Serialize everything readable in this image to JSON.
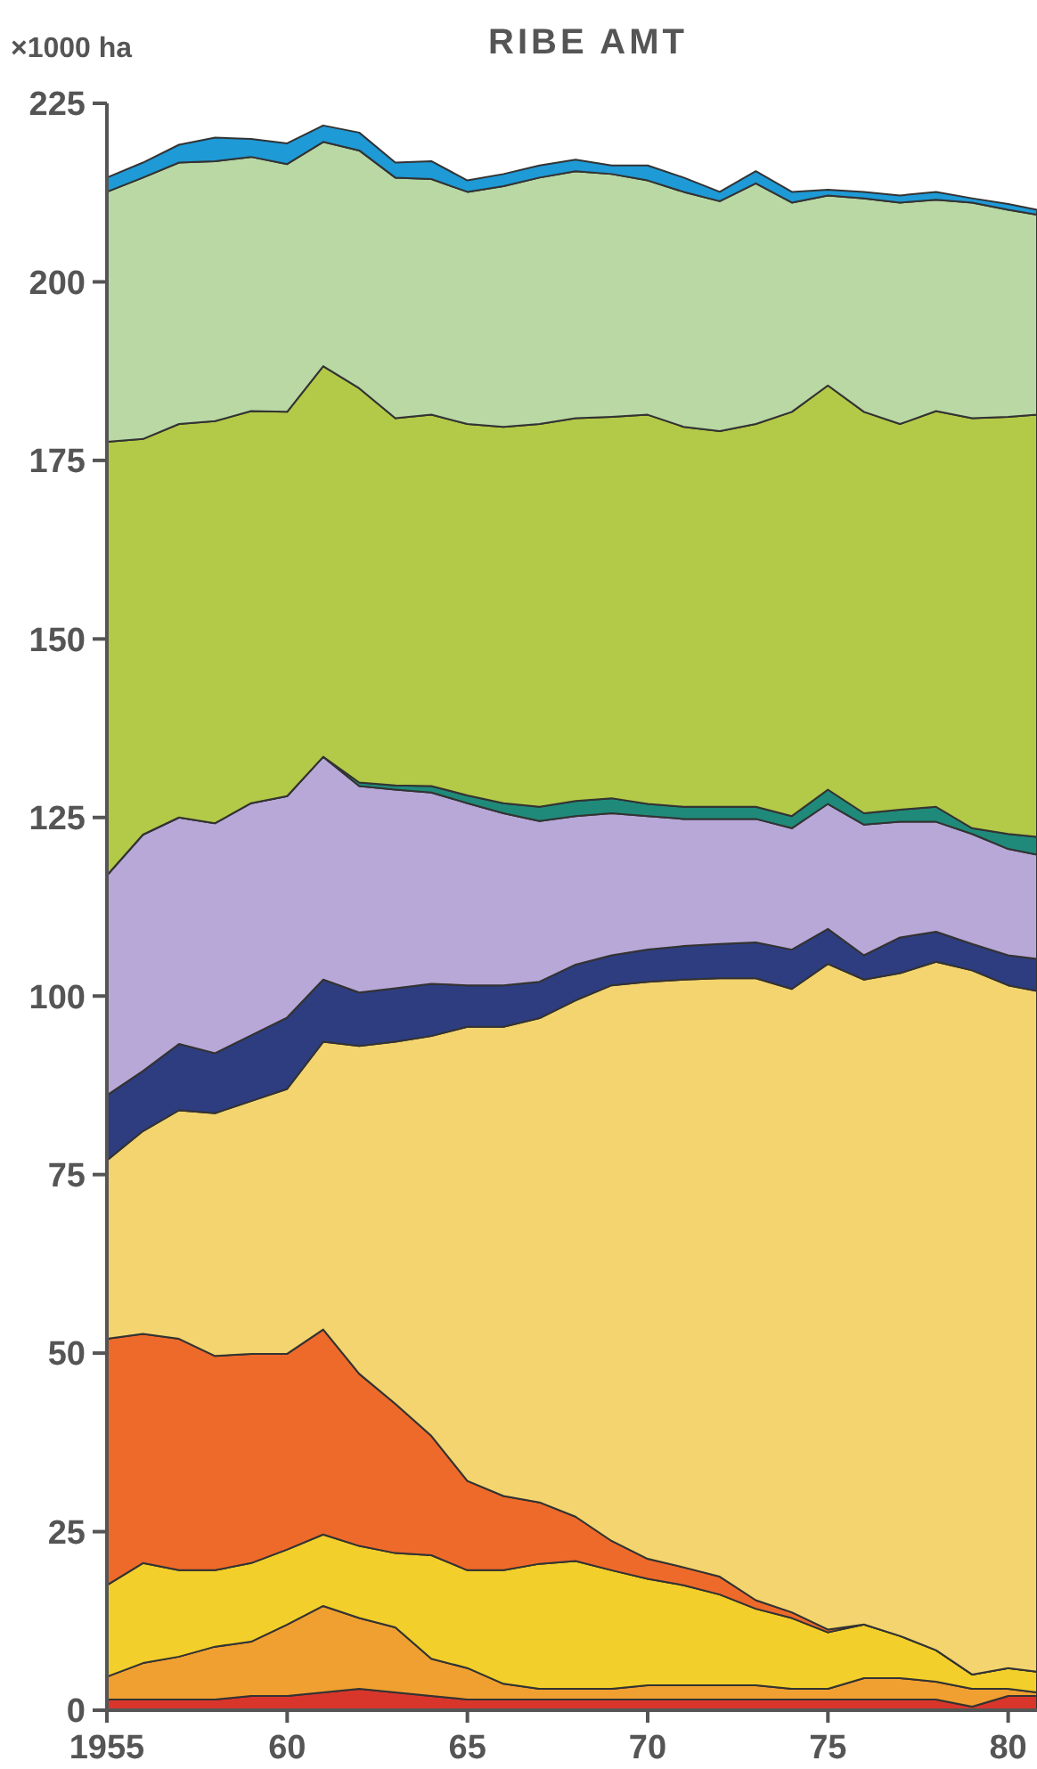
{
  "chart_data": {
    "type": "area",
    "title": "RIBE AMT",
    "ylabel": "×1000 ha",
    "stacked": true,
    "x": [
      1955,
      1956,
      1957,
      1958,
      1959,
      1960,
      1961,
      1962,
      1963,
      1964,
      1965,
      1966,
      1967,
      1968,
      1969,
      1970,
      1971,
      1972,
      1973,
      1974,
      1975,
      1976,
      1977,
      1978,
      1979,
      1980,
      1980.8
    ],
    "xlim": [
      1955,
      1980.8
    ],
    "xticks": [
      {
        "value": 1955,
        "label": "1955"
      },
      {
        "value": 1960,
        "label": "60"
      },
      {
        "value": 1965,
        "label": "65"
      },
      {
        "value": 1970,
        "label": "70"
      },
      {
        "value": 1975,
        "label": "75"
      },
      {
        "value": 1980,
        "label": "80"
      }
    ],
    "ylim": [
      0,
      225
    ],
    "yticks": [
      0,
      25,
      50,
      75,
      100,
      125,
      150,
      175,
      200,
      225
    ],
    "grid": false,
    "series": [
      {
        "color": "#d9362b",
        "values": [
          1.5,
          1.5,
          1.5,
          1.5,
          2,
          2,
          2.5,
          3,
          2.5,
          2,
          1.5,
          1.5,
          1.5,
          1.5,
          1.5,
          1.5,
          1.5,
          1.5,
          1.5,
          1.5,
          1.5,
          1.5,
          1.5,
          1.5,
          0.5,
          2,
          2
        ]
      },
      {
        "color": "#f0a030",
        "values": [
          3.2,
          5.1,
          6.0,
          7.4,
          7.6,
          10.0,
          12.1,
          9.9,
          9.1,
          5.2,
          4.4,
          2.2,
          1.5,
          1.5,
          1.5,
          2.0,
          2.0,
          2.0,
          2.0,
          1.5,
          1.5,
          3.0,
          3.0,
          2.5,
          2.5,
          1.0,
          0.5
        ]
      },
      {
        "color": "#f2cf2a",
        "values": [
          12.8,
          14.0,
          12.1,
          10.7,
          11.0,
          10.5,
          10.0,
          10.1,
          10.4,
          14.5,
          13.7,
          15.9,
          17.5,
          17.9,
          16.6,
          14.9,
          14.0,
          12.7,
          10.7,
          9.9,
          7.9,
          7.5,
          5.9,
          4.4,
          2.0,
          2.9,
          2.9
        ]
      },
      {
        "color": "#ee6a2a",
        "values": [
          34.5,
          32.1,
          32.4,
          30.0,
          29.3,
          27.4,
          28.7,
          24.1,
          20.9,
          16.7,
          12.5,
          10.4,
          8.6,
          6.2,
          4.1,
          2.8,
          2.5,
          2.5,
          1.2,
          0.8,
          0.4,
          0,
          0,
          0,
          0,
          0,
          0
        ]
      },
      {
        "color": "#f3d46e",
        "values": [
          25.0,
          28.4,
          32.0,
          34.0,
          35.4,
          37.1,
          40.3,
          45.9,
          50.7,
          56.0,
          63.6,
          65.7,
          67.8,
          72.3,
          77.8,
          80.8,
          82.3,
          83.8,
          87.1,
          87.3,
          93.2,
          90.3,
          92.8,
          96.4,
          98.6,
          95.6,
          95.3
        ]
      },
      {
        "color": "#2e3d80",
        "values": [
          9.1,
          8.4,
          9.3,
          8.4,
          9.2,
          10.0,
          8.7,
          7.5,
          7.5,
          7.3,
          5.8,
          5.8,
          5.1,
          5.0,
          4.2,
          4.5,
          4.7,
          4.8,
          5.0,
          5.5,
          4.9,
          3.4,
          5.0,
          4.2,
          3.7,
          4.2,
          4.5
        ]
      },
      {
        "color": "#b7a8d8",
        "values": [
          30.8,
          33.1,
          31.7,
          32.2,
          32.5,
          31.0,
          31.2,
          28.9,
          27.8,
          26.8,
          25.5,
          24.1,
          22.5,
          20.8,
          19.9,
          18.7,
          17.8,
          17.5,
          17.3,
          17.0,
          17.5,
          18.3,
          16.2,
          15.4,
          15.4,
          14.9,
          14.6
        ]
      },
      {
        "color": "#1f8a7a",
        "values": [
          0,
          0,
          0,
          0,
          0,
          0,
          0,
          0.5,
          0.6,
          0.9,
          1.1,
          1.4,
          2.0,
          2.1,
          2.1,
          1.7,
          1.7,
          1.7,
          1.7,
          1.7,
          2.0,
          1.6,
          1.7,
          2.1,
          0.8,
          2.1,
          2.5
        ]
      },
      {
        "color": "#b3c948",
        "values": [
          60.7,
          55.4,
          55.1,
          56.3,
          54.9,
          53.8,
          54.7,
          55.2,
          51.4,
          52.0,
          52.0,
          52.7,
          53.6,
          53.6,
          53.4,
          54.5,
          53.2,
          52.6,
          53.6,
          56.6,
          56.6,
          56.2,
          54.0,
          55.4,
          57.4,
          58.4,
          59.1
        ]
      },
      {
        "color": "#b9d8a4",
        "values": [
          35.0,
          36.6,
          36.6,
          36.4,
          35.6,
          34.7,
          31.4,
          33.3,
          33.7,
          33.0,
          32.5,
          33.7,
          34.5,
          34.6,
          34.0,
          32.8,
          32.9,
          32.2,
          33.7,
          29.3,
          26.6,
          29.9,
          31.0,
          29.6,
          30.2,
          29.0,
          28.0
        ]
      },
      {
        "color": "#1e9ad6",
        "values": [
          2.0,
          2.1,
          2.5,
          3.3,
          2.5,
          2.9,
          2.3,
          2.5,
          2.1,
          2.5,
          1.6,
          1.7,
          1.7,
          1.6,
          1.2,
          2.1,
          2.0,
          1.3,
          1.7,
          1.5,
          0.8,
          0.9,
          1.0,
          1.1,
          0.6,
          0.8,
          0.7
        ]
      }
    ]
  }
}
